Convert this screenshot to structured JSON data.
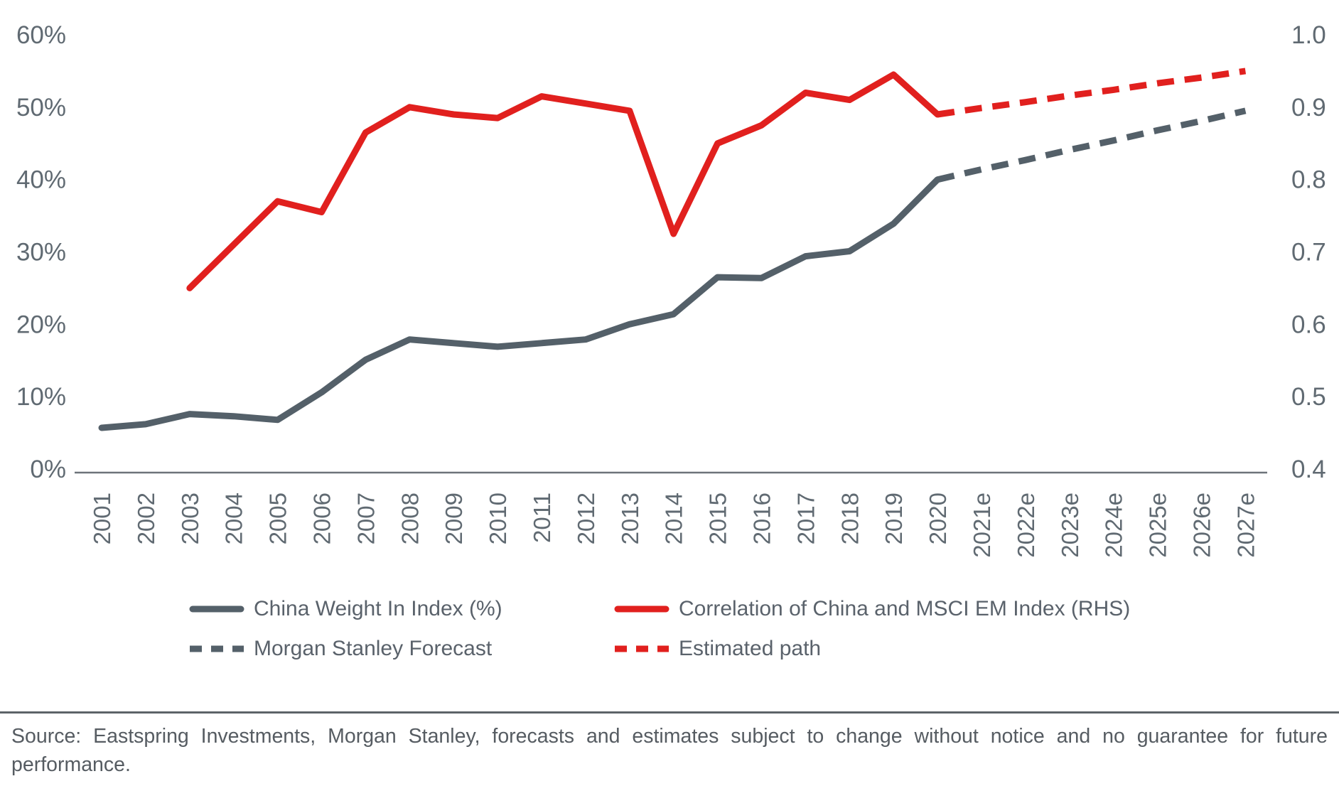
{
  "chart_data": {
    "type": "line",
    "categories": [
      "2001",
      "2002",
      "2003",
      "2004",
      "2005",
      "2006",
      "2007",
      "2008",
      "2009",
      "2010",
      "2011",
      "2012",
      "2013",
      "2014",
      "2015",
      "2016",
      "2017",
      "2018",
      "2019",
      "2020",
      "2021e",
      "2022e",
      "2023e",
      "2024e",
      "2025e",
      "2026e",
      "2027e"
    ],
    "left_axis": {
      "ticks": [
        "0%",
        "10%",
        "20%",
        "30%",
        "40%",
        "50%",
        "60%"
      ],
      "min": 0,
      "max": 60
    },
    "right_axis": {
      "ticks": [
        "0.4",
        "0.5",
        "0.6",
        "0.7",
        "0.8",
        "0.9",
        "1.0"
      ],
      "min": 0.4,
      "max": 1.0
    },
    "grid": "off",
    "legend_position": "bottom",
    "series": [
      {
        "name": "China Weight In Index (%)",
        "axis": "left",
        "style": "solid",
        "color": "#546069",
        "x_start": "2001",
        "values": [
          5.7,
          6.2,
          7.6,
          7.3,
          6.8,
          10.6,
          15.1,
          17.9,
          17.4,
          16.9,
          17.4,
          17.9,
          20.0,
          21.4,
          26.5,
          26.4,
          29.4,
          30.1,
          33.9,
          40.0
        ]
      },
      {
        "name": "Morgan Stanley Forecast",
        "axis": "left",
        "style": "dashed",
        "color": "#546069",
        "x_start": "2020",
        "values": [
          40.0,
          41.4,
          42.7,
          44.1,
          45.4,
          46.8,
          48.1,
          49.5
        ]
      },
      {
        "name": "Correlation of China and MSCI EM Index (RHS)",
        "axis": "right",
        "style": "solid",
        "color": "#e1201e",
        "x_start": "2003",
        "values": [
          0.65,
          0.71,
          0.77,
          0.755,
          0.865,
          0.9,
          0.89,
          0.885,
          0.915,
          0.905,
          0.895,
          0.725,
          0.85,
          0.875,
          0.92,
          0.91,
          0.945,
          0.89
        ]
      },
      {
        "name": "Estimated path",
        "axis": "right",
        "style": "dashed",
        "color": "#e1201e",
        "x_start": "2020",
        "values": [
          0.89,
          0.899,
          0.907,
          0.916,
          0.924,
          0.933,
          0.941,
          0.95
        ]
      }
    ]
  },
  "source": {
    "text": "Source: Eastspring Investments, Morgan Stanley, forecasts and estimates subject to change without notice and no guarantee for future performance."
  }
}
